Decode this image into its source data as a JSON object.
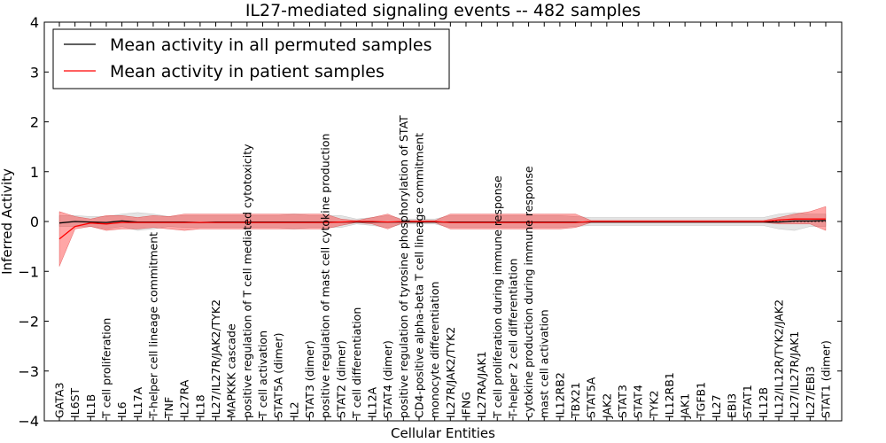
{
  "chart_data": {
    "type": "line",
    "title": "IL27-mediated signaling events -- 482 samples",
    "xlabel": "Cellular Entities",
    "ylabel": "Inferred Activity",
    "ylim": [
      -4,
      4
    ],
    "yticks": [
      -4,
      -3,
      -2,
      -1,
      0,
      1,
      2,
      3,
      4
    ],
    "ytick_labels": [
      "−4",
      "−3",
      "−2",
      "−1",
      "0",
      "1",
      "2",
      "3",
      "4"
    ],
    "grid": false,
    "legend": {
      "location": "top-left",
      "entries": [
        {
          "label": "Mean activity in all permuted samples",
          "color": "#000000"
        },
        {
          "label": "Mean activity in patient samples",
          "color": "#ff0000"
        }
      ]
    },
    "categories": [
      "GATA3",
      "IL6ST",
      "IL1B",
      "T cell proliferation",
      "IL6",
      "IL17A",
      "T-helper cell lineage commitment",
      "TNF",
      "IL27RA",
      "IL18",
      "IL27/IL27R/JAK2/TYK2",
      "MAPKKK cascade",
      "positive regulation of T cell mediated cytotoxicity",
      "T cell activation",
      "STAT5A (dimer)",
      "IL2",
      "STAT3 (dimer)",
      "positive regulation of mast cell cytokine production",
      "STAT2 (dimer)",
      "T cell differentiation",
      "IL12A",
      "STAT4 (dimer)",
      "positive regulation of tyrosine phosphorylation of STAT",
      "CD4-positive alpha-beta T cell lineage commitment",
      "monocyte differentiation",
      "IL27R/JAK2/TYK2",
      "IFNG",
      "IL27RA/JAK1",
      "T cell proliferation during immune response",
      "T-helper 2 cell differentiation",
      "cytokine production during immune response",
      "mast cell activation",
      "IL12RB2",
      "TBX21",
      "STAT5A",
      "JAK2",
      "STAT3",
      "STAT4",
      "TYK2",
      "IL12RB1",
      "JAK1",
      "TGFB1",
      "IL27",
      "EBI3",
      "STAT1",
      "IL12B",
      "IL12/IL12R/TYK2/JAK2",
      "IL27/IL27R/JAK1",
      "IL27/EBI3",
      "STAT1 (dimer)"
    ],
    "series": [
      {
        "name": "Mean activity in all permuted samples",
        "color": "#000000",
        "values": [
          -0.03,
          0.0,
          -0.01,
          -0.02,
          0.01,
          -0.01,
          -0.01,
          -0.01,
          -0.01,
          -0.02,
          -0.01,
          -0.01,
          -0.01,
          -0.01,
          -0.01,
          -0.01,
          -0.01,
          -0.01,
          -0.01,
          -0.01,
          -0.01,
          -0.01,
          -0.01,
          -0.01,
          -0.01,
          -0.01,
          -0.01,
          -0.01,
          -0.01,
          -0.01,
          -0.01,
          -0.01,
          -0.01,
          -0.01,
          -0.01,
          -0.01,
          -0.01,
          -0.01,
          -0.01,
          -0.01,
          -0.01,
          -0.01,
          -0.01,
          -0.01,
          -0.01,
          -0.01,
          -0.01,
          0.01,
          0.01,
          0.02
        ],
        "lower": [
          -0.1,
          -0.1,
          -0.1,
          -0.15,
          -0.1,
          -0.18,
          -0.15,
          -0.1,
          -0.12,
          -0.12,
          -0.12,
          -0.12,
          -0.12,
          -0.12,
          -0.12,
          -0.15,
          -0.12,
          -0.12,
          -0.12,
          -0.05,
          -0.08,
          -0.12,
          -0.05,
          -0.05,
          -0.05,
          -0.12,
          -0.12,
          -0.12,
          -0.12,
          -0.12,
          -0.12,
          -0.12,
          -0.12,
          -0.1,
          -0.08,
          -0.08,
          -0.08,
          -0.08,
          -0.08,
          -0.08,
          -0.08,
          -0.08,
          -0.08,
          -0.08,
          -0.08,
          -0.08,
          -0.15,
          -0.18,
          -0.1,
          -0.1
        ],
        "upper": [
          0.12,
          0.12,
          0.1,
          0.1,
          0.15,
          0.18,
          0.15,
          0.1,
          0.12,
          0.12,
          0.12,
          0.12,
          0.12,
          0.12,
          0.12,
          0.15,
          0.12,
          0.12,
          0.12,
          0.05,
          0.08,
          0.12,
          0.05,
          0.05,
          0.05,
          0.12,
          0.12,
          0.12,
          0.12,
          0.12,
          0.12,
          0.12,
          0.12,
          0.1,
          0.08,
          0.08,
          0.08,
          0.08,
          0.08,
          0.08,
          0.08,
          0.08,
          0.08,
          0.08,
          0.08,
          0.08,
          0.15,
          0.18,
          0.15,
          0.15
        ]
      },
      {
        "name": "Mean activity in patient samples",
        "color": "#ff0000",
        "values": [
          -0.35,
          -0.1,
          -0.03,
          -0.05,
          -0.02,
          -0.02,
          -0.02,
          -0.02,
          -0.02,
          -0.02,
          -0.02,
          -0.02,
          -0.02,
          -0.02,
          -0.02,
          -0.02,
          -0.02,
          -0.02,
          -0.01,
          0.0,
          0.0,
          -0.01,
          0.0,
          0.0,
          0.0,
          -0.02,
          -0.02,
          -0.02,
          -0.02,
          -0.02,
          -0.02,
          -0.02,
          -0.02,
          -0.02,
          0.0,
          0.0,
          0.0,
          0.0,
          0.0,
          0.0,
          0.0,
          0.0,
          0.0,
          0.0,
          0.0,
          0.0,
          0.03,
          0.05,
          0.05,
          0.05
        ],
        "lower": [
          -0.9,
          -0.15,
          -0.1,
          -0.18,
          -0.15,
          -0.15,
          -0.12,
          -0.15,
          -0.18,
          -0.15,
          -0.15,
          -0.15,
          -0.15,
          -0.15,
          -0.15,
          -0.15,
          -0.15,
          -0.15,
          -0.08,
          -0.02,
          -0.05,
          -0.15,
          -0.02,
          -0.02,
          -0.02,
          -0.15,
          -0.15,
          -0.15,
          -0.15,
          -0.15,
          -0.15,
          -0.15,
          -0.15,
          -0.12,
          -0.02,
          -0.02,
          -0.02,
          -0.02,
          -0.02,
          -0.02,
          -0.02,
          -0.02,
          -0.02,
          -0.02,
          -0.02,
          -0.02,
          -0.05,
          -0.05,
          -0.05,
          -0.18
        ],
        "upper": [
          0.2,
          0.1,
          0.05,
          0.12,
          0.12,
          0.08,
          0.12,
          0.1,
          0.15,
          0.15,
          0.15,
          0.15,
          0.15,
          0.15,
          0.15,
          0.15,
          0.15,
          0.15,
          0.05,
          0.02,
          0.08,
          0.15,
          0.02,
          0.02,
          0.02,
          0.15,
          0.15,
          0.15,
          0.15,
          0.15,
          0.15,
          0.15,
          0.15,
          0.15,
          0.02,
          0.02,
          0.02,
          0.02,
          0.02,
          0.02,
          0.02,
          0.02,
          0.02,
          0.02,
          0.02,
          0.02,
          0.08,
          0.15,
          0.2,
          0.3
        ]
      }
    ]
  }
}
